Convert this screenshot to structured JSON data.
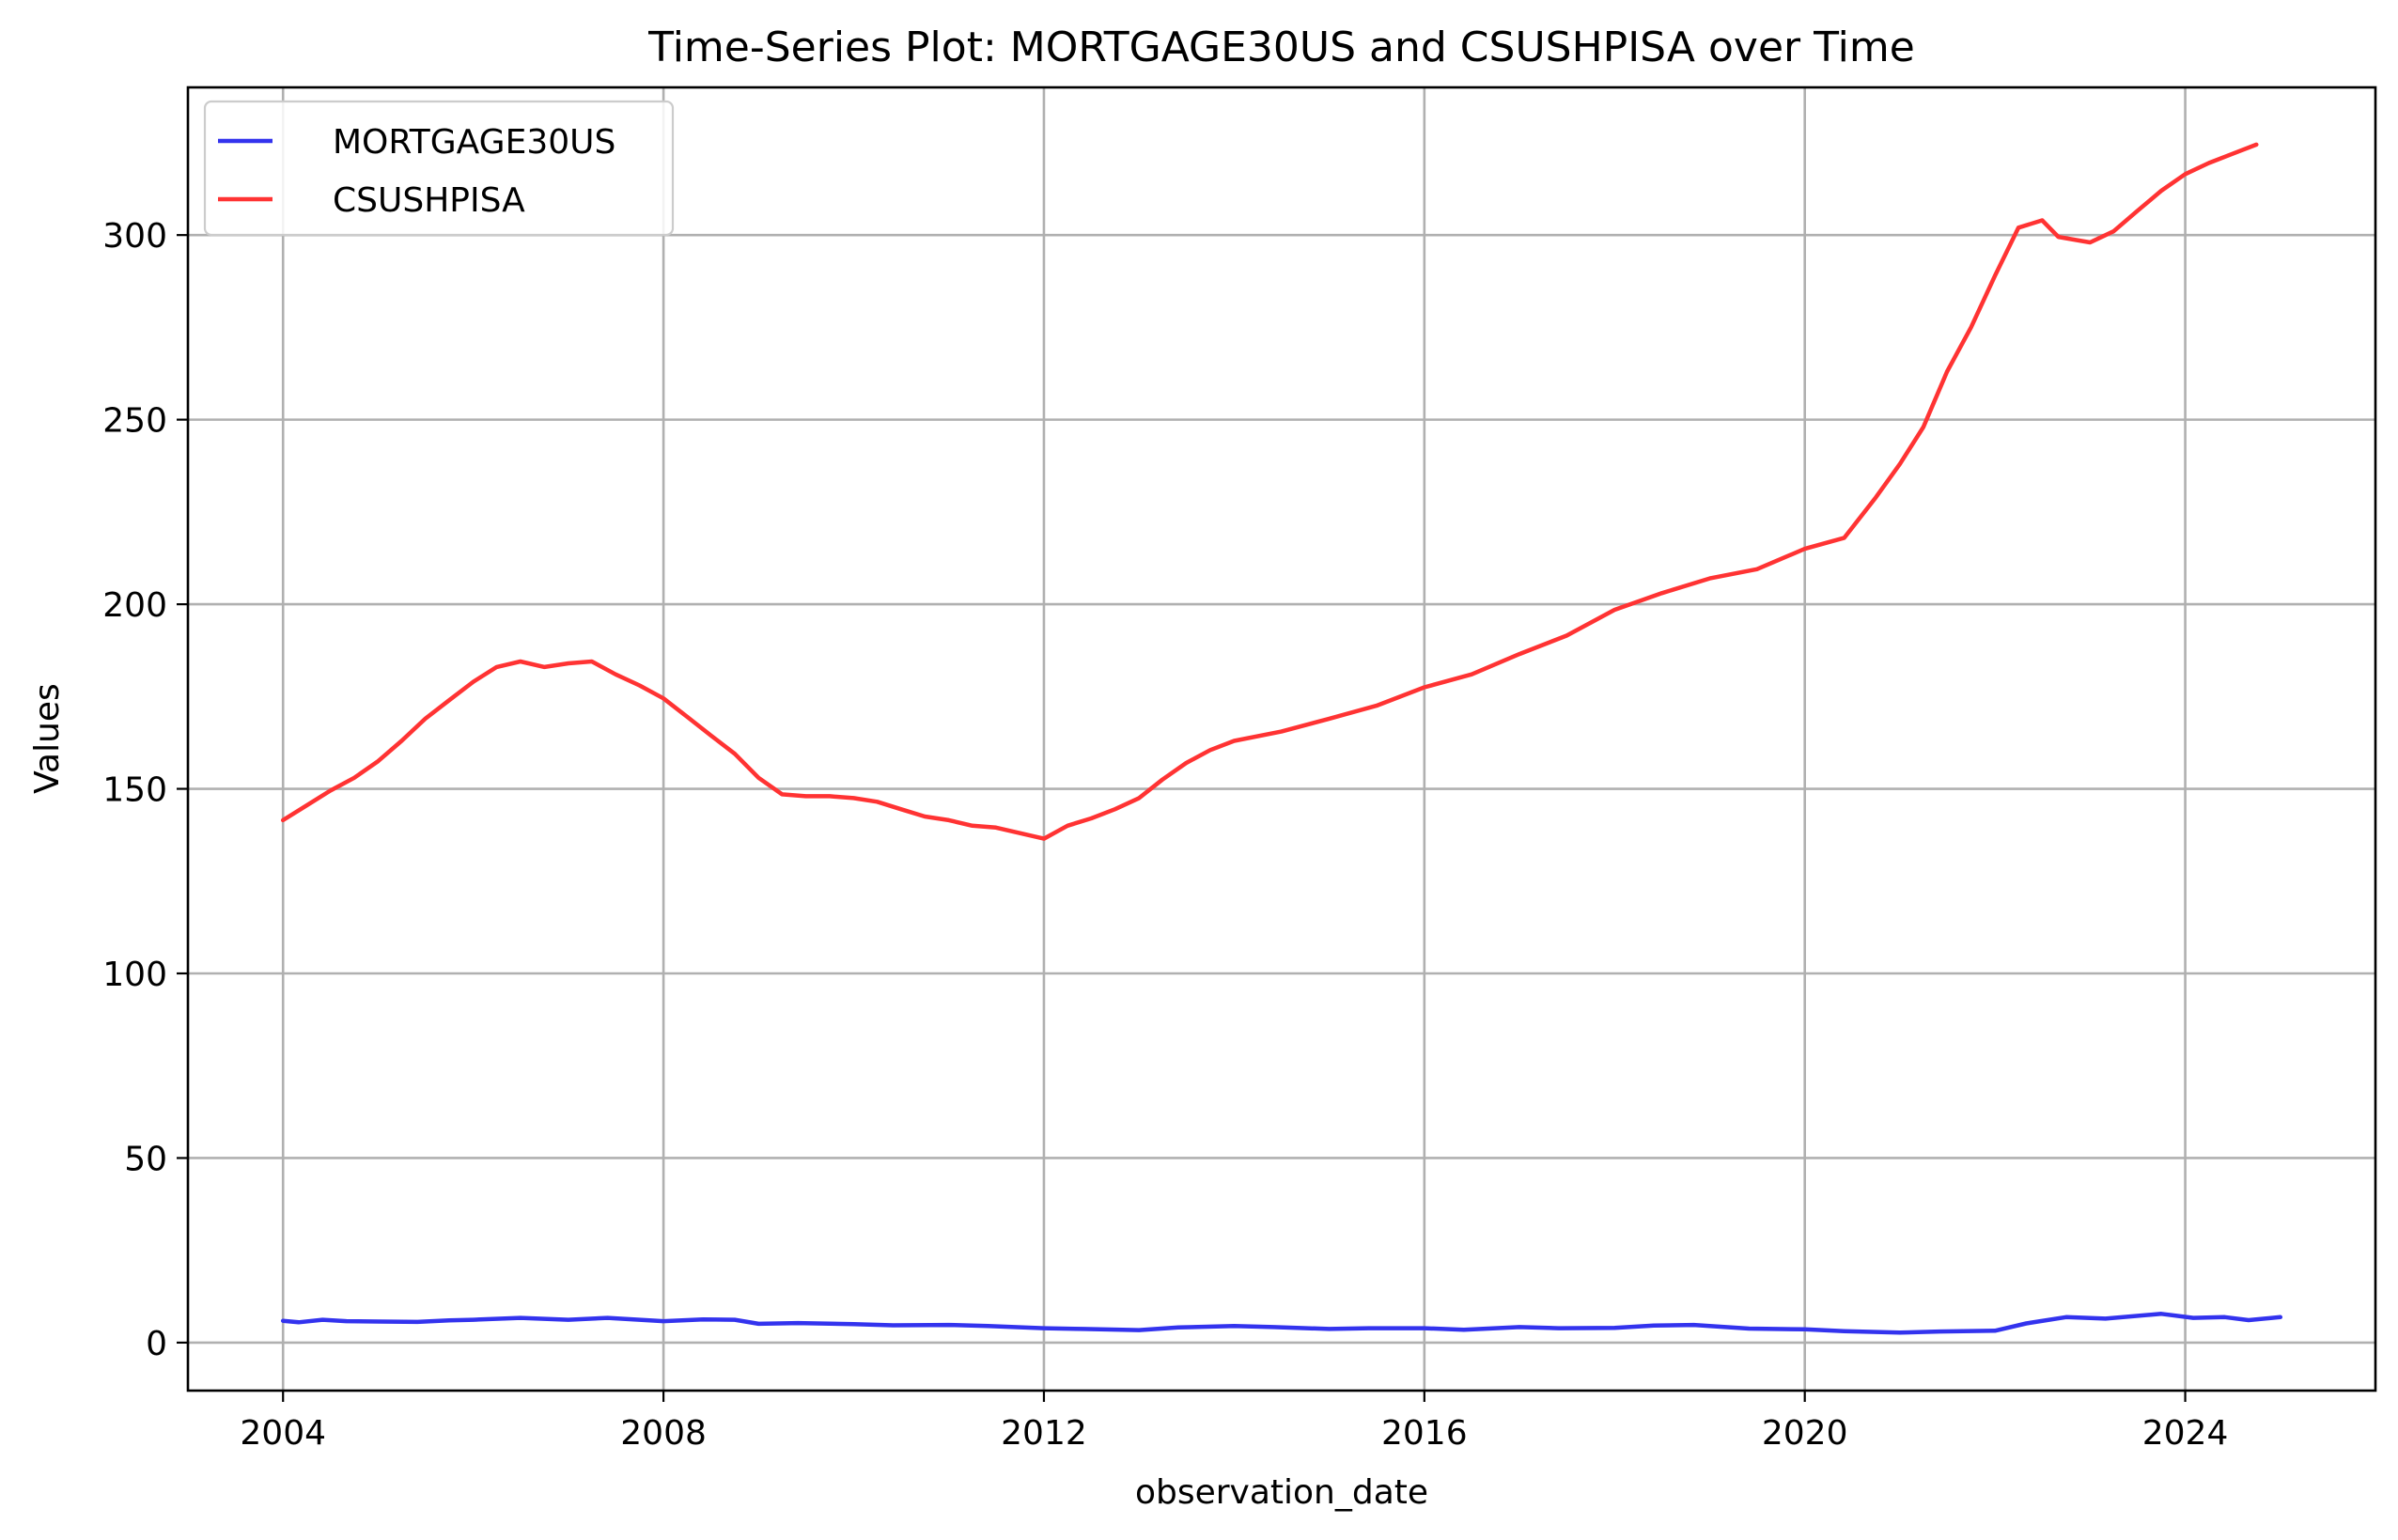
{
  "chart_data": {
    "type": "line",
    "title": "Time-Series Plot: MORTGAGE30US and CSUSHPISA over Time",
    "xlabel": "observation_date",
    "ylabel": "Values",
    "x_type": "date",
    "xlim": [
      "2003-01-01",
      "2026-01-01"
    ],
    "ylim": [
      -13,
      340
    ],
    "xticks": [
      "2004",
      "2008",
      "2012",
      "2016",
      "2020",
      "2024"
    ],
    "yticks": [
      0,
      50,
      100,
      150,
      200,
      250,
      300
    ],
    "grid": true,
    "legend_position": "upper-left",
    "series": [
      {
        "name": "MORTGAGE30US",
        "color": "#3333ee",
        "points": [
          [
            "2004-01-01",
            5.9
          ],
          [
            "2004-03-01",
            5.5
          ],
          [
            "2004-06-01",
            6.2
          ],
          [
            "2004-09-01",
            5.8
          ],
          [
            "2005-01-01",
            5.7
          ],
          [
            "2005-06-01",
            5.6
          ],
          [
            "2005-10-01",
            6.0
          ],
          [
            "2006-01-01",
            6.2
          ],
          [
            "2006-07-01",
            6.7
          ],
          [
            "2007-01-01",
            6.2
          ],
          [
            "2007-06-01",
            6.7
          ],
          [
            "2008-01-01",
            5.8
          ],
          [
            "2008-06-01",
            6.3
          ],
          [
            "2008-10-01",
            6.2
          ],
          [
            "2009-01-01",
            5.1
          ],
          [
            "2009-06-01",
            5.3
          ],
          [
            "2010-01-01",
            5.0
          ],
          [
            "2010-06-01",
            4.7
          ],
          [
            "2011-01-01",
            4.8
          ],
          [
            "2011-06-01",
            4.5
          ],
          [
            "2012-01-01",
            3.9
          ],
          [
            "2012-06-01",
            3.7
          ],
          [
            "2013-01-01",
            3.4
          ],
          [
            "2013-06-01",
            4.1
          ],
          [
            "2014-01-01",
            4.5
          ],
          [
            "2014-06-01",
            4.2
          ],
          [
            "2015-01-01",
            3.7
          ],
          [
            "2015-06-01",
            3.9
          ],
          [
            "2016-01-01",
            3.9
          ],
          [
            "2016-06-01",
            3.5
          ],
          [
            "2017-01-01",
            4.2
          ],
          [
            "2017-06-01",
            3.9
          ],
          [
            "2018-01-01",
            4.0
          ],
          [
            "2018-06-01",
            4.6
          ],
          [
            "2018-11-01",
            4.8
          ],
          [
            "2019-06-01",
            3.8
          ],
          [
            "2020-01-01",
            3.6
          ],
          [
            "2020-06-01",
            3.1
          ],
          [
            "2021-01-01",
            2.7
          ],
          [
            "2021-06-01",
            3.0
          ],
          [
            "2022-01-01",
            3.2
          ],
          [
            "2022-05-01",
            5.2
          ],
          [
            "2022-10-01",
            6.9
          ],
          [
            "2023-03-01",
            6.5
          ],
          [
            "2023-10-01",
            7.8
          ],
          [
            "2024-02-01",
            6.7
          ],
          [
            "2024-06-01",
            6.9
          ],
          [
            "2024-09-01",
            6.1
          ],
          [
            "2025-01-01",
            6.9
          ]
        ]
      },
      {
        "name": "CSUSHPISA",
        "color": "#ff3333",
        "points": [
          [
            "2004-01-01",
            141.5
          ],
          [
            "2004-04-01",
            145.5
          ],
          [
            "2004-07-01",
            149.5
          ],
          [
            "2004-10-01",
            153.0
          ],
          [
            "2005-01-01",
            157.5
          ],
          [
            "2005-04-01",
            163.0
          ],
          [
            "2005-07-01",
            169.0
          ],
          [
            "2005-10-01",
            174.0
          ],
          [
            "2006-01-01",
            179.0
          ],
          [
            "2006-04-01",
            183.0
          ],
          [
            "2006-07-01",
            184.5
          ],
          [
            "2006-10-01",
            183.0
          ],
          [
            "2007-01-01",
            184.0
          ],
          [
            "2007-04-01",
            184.5
          ],
          [
            "2007-07-01",
            181.0
          ],
          [
            "2007-10-01",
            178.0
          ],
          [
            "2008-01-01",
            174.5
          ],
          [
            "2008-04-01",
            169.5
          ],
          [
            "2008-07-01",
            164.5
          ],
          [
            "2008-10-01",
            159.5
          ],
          [
            "2009-01-01",
            153.0
          ],
          [
            "2009-04-01",
            148.5
          ],
          [
            "2009-07-01",
            148.0
          ],
          [
            "2009-10-01",
            148.0
          ],
          [
            "2010-01-01",
            147.5
          ],
          [
            "2010-04-01",
            146.5
          ],
          [
            "2010-07-01",
            144.5
          ],
          [
            "2010-10-01",
            142.5
          ],
          [
            "2011-01-01",
            141.5
          ],
          [
            "2011-04-01",
            140.0
          ],
          [
            "2011-07-01",
            139.5
          ],
          [
            "2011-10-01",
            138.0
          ],
          [
            "2012-01-01",
            136.5
          ],
          [
            "2012-04-01",
            140.0
          ],
          [
            "2012-07-01",
            142.0
          ],
          [
            "2012-10-01",
            144.5
          ],
          [
            "2013-01-01",
            147.5
          ],
          [
            "2013-04-01",
            152.5
          ],
          [
            "2013-07-01",
            157.0
          ],
          [
            "2013-10-01",
            160.5
          ],
          [
            "2014-01-01",
            163.0
          ],
          [
            "2014-07-01",
            165.5
          ],
          [
            "2015-01-01",
            169.0
          ],
          [
            "2015-07-01",
            172.5
          ],
          [
            "2016-01-01",
            177.5
          ],
          [
            "2016-07-01",
            181.0
          ],
          [
            "2017-01-01",
            186.5
          ],
          [
            "2017-07-01",
            191.5
          ],
          [
            "2018-01-01",
            198.5
          ],
          [
            "2018-07-01",
            203.0
          ],
          [
            "2019-01-01",
            207.0
          ],
          [
            "2019-07-01",
            209.5
          ],
          [
            "2020-01-01",
            215.0
          ],
          [
            "2020-06-01",
            218.0
          ],
          [
            "2020-10-01",
            229.0
          ],
          [
            "2021-01-01",
            238.0
          ],
          [
            "2021-04-01",
            248.0
          ],
          [
            "2021-07-01",
            263.0
          ],
          [
            "2021-10-01",
            275.0
          ],
          [
            "2022-01-01",
            289.0
          ],
          [
            "2022-04-01",
            302.0
          ],
          [
            "2022-07-01",
            304.0
          ],
          [
            "2022-09-01",
            299.5
          ],
          [
            "2023-01-01",
            298.0
          ],
          [
            "2023-04-01",
            301.0
          ],
          [
            "2023-07-01",
            306.5
          ],
          [
            "2023-10-01",
            312.0
          ],
          [
            "2024-01-01",
            316.5
          ],
          [
            "2024-04-01",
            319.5
          ],
          [
            "2024-07-01",
            322.0
          ],
          [
            "2024-10-01",
            324.5
          ]
        ]
      }
    ]
  }
}
